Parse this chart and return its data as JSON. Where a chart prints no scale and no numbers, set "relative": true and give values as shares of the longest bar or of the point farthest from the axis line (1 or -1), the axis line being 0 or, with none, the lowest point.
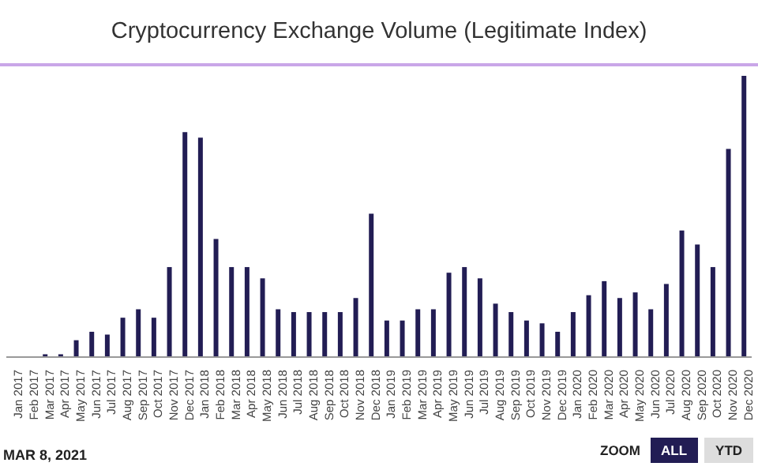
{
  "chart_data": {
    "type": "bar",
    "title": "Cryptocurrency Exchange Volume (Legitimate Index)",
    "relative": true,
    "categories": [
      "Jan 2017",
      "Feb 2017",
      "Mar 2017",
      "Apr 2017",
      "May 2017",
      "Jun 2017",
      "Jul 2017",
      "Aug 2017",
      "Sep 2017",
      "Oct 2017",
      "Nov 2017",
      "Dec 2017",
      "Jan 2018",
      "Feb 2018",
      "Mar 2018",
      "Apr 2018",
      "May 2018",
      "Jun 2018",
      "Jul 2018",
      "Aug 2018",
      "Sep 2018",
      "Oct 2018",
      "Nov 2018",
      "Dec 2018",
      "Jan 2019",
      "Feb 2019",
      "Mar 2019",
      "Apr 2019",
      "May 2019",
      "Jun 2019",
      "Jul 2019",
      "Aug 2019",
      "Sep 2019",
      "Oct 2019",
      "Nov 2019",
      "Dec 2019",
      "Jan 2020",
      "Feb 2020",
      "Mar 2020",
      "Apr 2020",
      "May 2020",
      "Jun 2020",
      "Jul 2020",
      "Aug 2020",
      "Sep 2020",
      "Oct 2020",
      "Nov 2020",
      "Dec 2020"
    ],
    "values": [
      0,
      0,
      0.01,
      0.01,
      0.06,
      0.09,
      0.08,
      0.14,
      0.17,
      0.14,
      0.32,
      0.8,
      0.78,
      0.42,
      0.32,
      0.32,
      0.28,
      0.17,
      0.16,
      0.16,
      0.16,
      0.16,
      0.21,
      0.51,
      0.13,
      0.13,
      0.17,
      0.17,
      0.3,
      0.32,
      0.28,
      0.19,
      0.16,
      0.13,
      0.12,
      0.09,
      0.16,
      0.22,
      0.27,
      0.21,
      0.23,
      0.17,
      0.26,
      0.45,
      0.4,
      0.32,
      0.74,
      1
    ],
    "color": "#221d54",
    "annotations": [
      "MAR 8, 2021",
      "ZOOM",
      "ALL",
      "YTD"
    ]
  }
}
